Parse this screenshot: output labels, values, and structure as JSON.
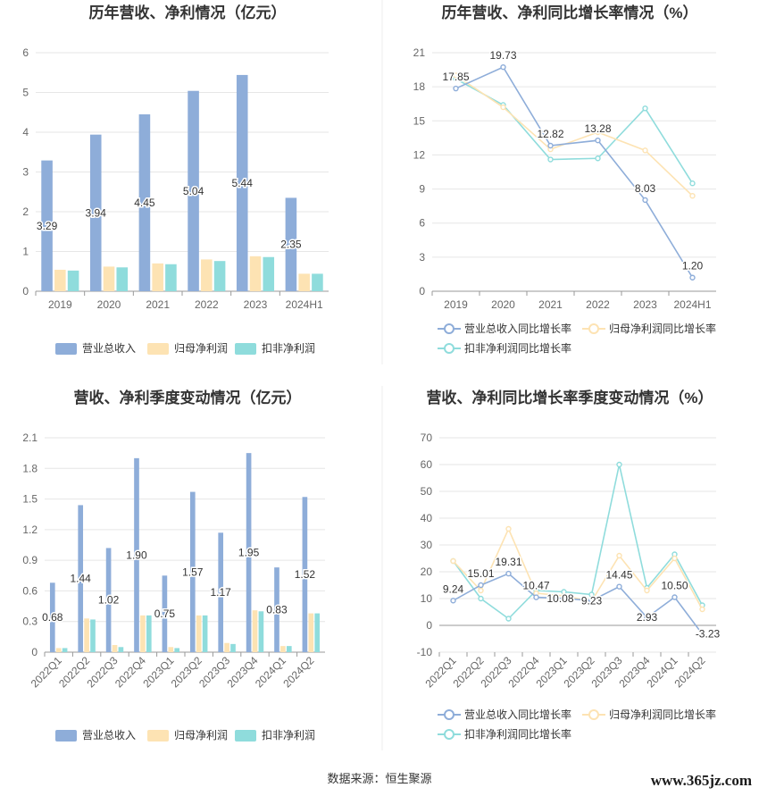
{
  "colors": {
    "revenue": "#8eadd9",
    "net_profit": "#fde3b3",
    "deducted_profit": "#8fdcdc",
    "revenue_line": "#8eadd9",
    "net_profit_line": "#fde3b3",
    "deducted_profit_line": "#8fdcdc",
    "grid": "#e6e6e6",
    "axis_text": "#666666",
    "title_text": "#333333"
  },
  "source_label": "数据来源：恒生聚源",
  "watermark": "www.365jz.com",
  "chart_data": [
    {
      "id": "annual-amount",
      "type": "bar",
      "title": "历年营收、净利情况（亿元）",
      "categories": [
        "2019",
        "2020",
        "2021",
        "2022",
        "2023",
        "2024H1"
      ],
      "ylim": [
        0,
        6
      ],
      "yticks": [
        0,
        1,
        2,
        3,
        4,
        5,
        6
      ],
      "grid": true,
      "legend_position": "bottom",
      "series": [
        {
          "name": "营业总收入",
          "color_key": "revenue",
          "values": [
            3.29,
            3.94,
            4.45,
            5.04,
            5.44,
            2.35
          ],
          "labels": [
            "3.29",
            "3.94",
            "4.45",
            "5.04",
            "5.44",
            "2.35"
          ]
        },
        {
          "name": "归母净利润",
          "color_key": "net_profit",
          "values": [
            0.54,
            0.62,
            0.7,
            0.8,
            0.88,
            0.44
          ]
        },
        {
          "name": "扣非净利润",
          "color_key": "deducted_profit",
          "values": [
            0.52,
            0.6,
            0.68,
            0.76,
            0.86,
            0.44
          ]
        }
      ]
    },
    {
      "id": "annual-growth",
      "type": "line",
      "title": "历年营收、净利同比增长率情况（%）",
      "categories": [
        "2019",
        "2020",
        "2021",
        "2022",
        "2023",
        "2024H1"
      ],
      "ylim": [
        0,
        21
      ],
      "yticks": [
        0,
        3,
        6,
        9,
        12,
        15,
        18,
        21
      ],
      "grid": true,
      "legend_position": "bottom",
      "series": [
        {
          "name": "营业总收入同比增长率",
          "color_key": "revenue_line",
          "values": [
            17.85,
            19.73,
            12.82,
            13.28,
            8.03,
            1.2
          ],
          "labels": [
            "17.85",
            "19.73",
            "12.82",
            "13.28",
            "8.03",
            "1.20"
          ]
        },
        {
          "name": "归母净利润同比增长率",
          "color_key": "net_profit_line",
          "values": [
            19.0,
            16.2,
            12.5,
            14.0,
            12.4,
            8.4
          ]
        },
        {
          "name": "扣非净利润同比增长率",
          "color_key": "deducted_profit_line",
          "values": [
            18.7,
            16.4,
            11.6,
            11.7,
            16.1,
            9.5
          ]
        }
      ]
    },
    {
      "id": "quarterly-amount",
      "type": "bar",
      "title": "营收、净利季度变动情况（亿元）",
      "categories": [
        "2022Q1",
        "2022Q2",
        "2022Q3",
        "2022Q4",
        "2023Q1",
        "2023Q2",
        "2023Q3",
        "2023Q4",
        "2024Q1",
        "2024Q2"
      ],
      "ylim": [
        0,
        2.1
      ],
      "yticks": [
        0,
        0.3,
        0.6,
        0.9,
        1.2,
        1.5,
        1.8,
        2.1
      ],
      "grid": true,
      "legend_position": "bottom",
      "series": [
        {
          "name": "营业总收入",
          "color_key": "revenue",
          "values": [
            0.68,
            1.44,
            1.02,
            1.9,
            0.75,
            1.57,
            1.17,
            1.95,
            0.83,
            1.52
          ],
          "labels": [
            "0.68",
            "1.44",
            "1.02",
            "1.90",
            "0.75",
            "1.57",
            "1.17",
            "1.95",
            "0.83",
            "1.52"
          ]
        },
        {
          "name": "归母净利润",
          "color_key": "net_profit",
          "values": [
            0.04,
            0.33,
            0.07,
            0.36,
            0.05,
            0.36,
            0.09,
            0.41,
            0.06,
            0.38
          ]
        },
        {
          "name": "扣非净利润",
          "color_key": "deducted_profit",
          "values": [
            0.04,
            0.32,
            0.05,
            0.36,
            0.04,
            0.36,
            0.08,
            0.4,
            0.06,
            0.38
          ]
        }
      ]
    },
    {
      "id": "quarterly-growth",
      "type": "line",
      "title": "营收、净利同比增长率季度变动情况（%）",
      "categories": [
        "2022Q1",
        "2022Q2",
        "2022Q3",
        "2022Q4",
        "2023Q1",
        "2023Q2",
        "2023Q3",
        "2023Q4",
        "2024Q1",
        "2024Q2"
      ],
      "ylim": [
        -10,
        70
      ],
      "yticks": [
        -10,
        0,
        10,
        20,
        30,
        40,
        50,
        60,
        70
      ],
      "grid": true,
      "legend_position": "bottom",
      "series": [
        {
          "name": "营业总收入同比增长率",
          "color_key": "revenue_line",
          "values": [
            9.24,
            15.01,
            19.31,
            10.47,
            10.08,
            9.23,
            14.45,
            2.93,
            10.5,
            -3.23
          ],
          "labels": [
            "9.24",
            "15.01",
            "19.31",
            "10.47",
            "10.08",
            "9.23",
            "14.45",
            "2.93",
            "10.50",
            "-3.23"
          ]
        },
        {
          "name": "归母净利润同比增长率",
          "color_key": "net_profit_line",
          "values": [
            24.0,
            13.0,
            36.0,
            12.0,
            11.0,
            9.0,
            26.0,
            13.0,
            25.0,
            6.0
          ]
        },
        {
          "name": "扣非净利润同比增长率",
          "color_key": "deducted_profit_line",
          "values": [
            24.0,
            10.0,
            2.5,
            13.0,
            12.5,
            11.5,
            60.0,
            14.0,
            26.5,
            7.5
          ]
        }
      ]
    }
  ]
}
